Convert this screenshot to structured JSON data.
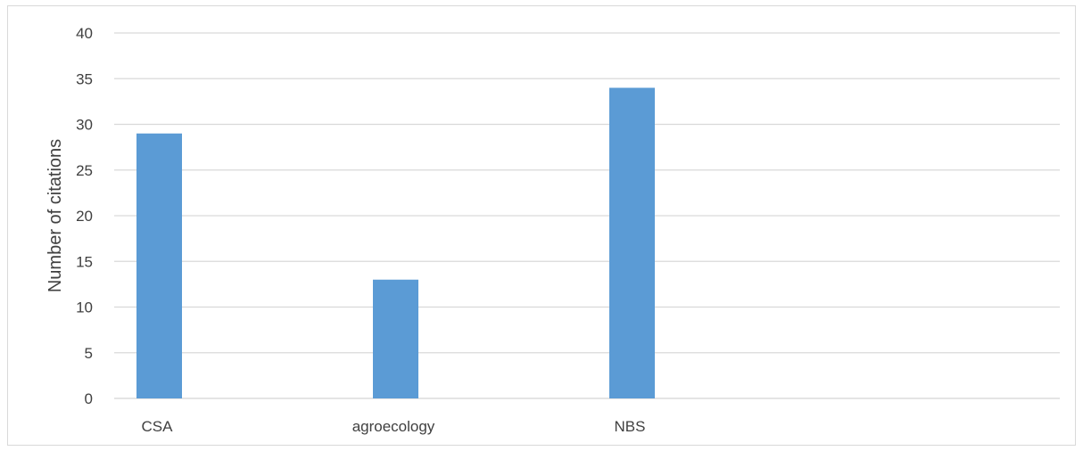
{
  "chart_data": {
    "type": "bar",
    "title": "",
    "xlabel": "",
    "ylabel": "Number of citations",
    "categories": [
      "CSA",
      "agroecology",
      "NBS",
      ""
    ],
    "values": [
      29,
      13,
      34,
      null
    ],
    "ylim": [
      0,
      40
    ],
    "yticks": [
      0,
      5,
      10,
      15,
      20,
      25,
      30,
      35,
      40
    ],
    "grid": true,
    "legend": "none",
    "colors": {
      "bar": "#5b9bd5",
      "grid": "#d9d9d9",
      "text": "#404040"
    }
  }
}
